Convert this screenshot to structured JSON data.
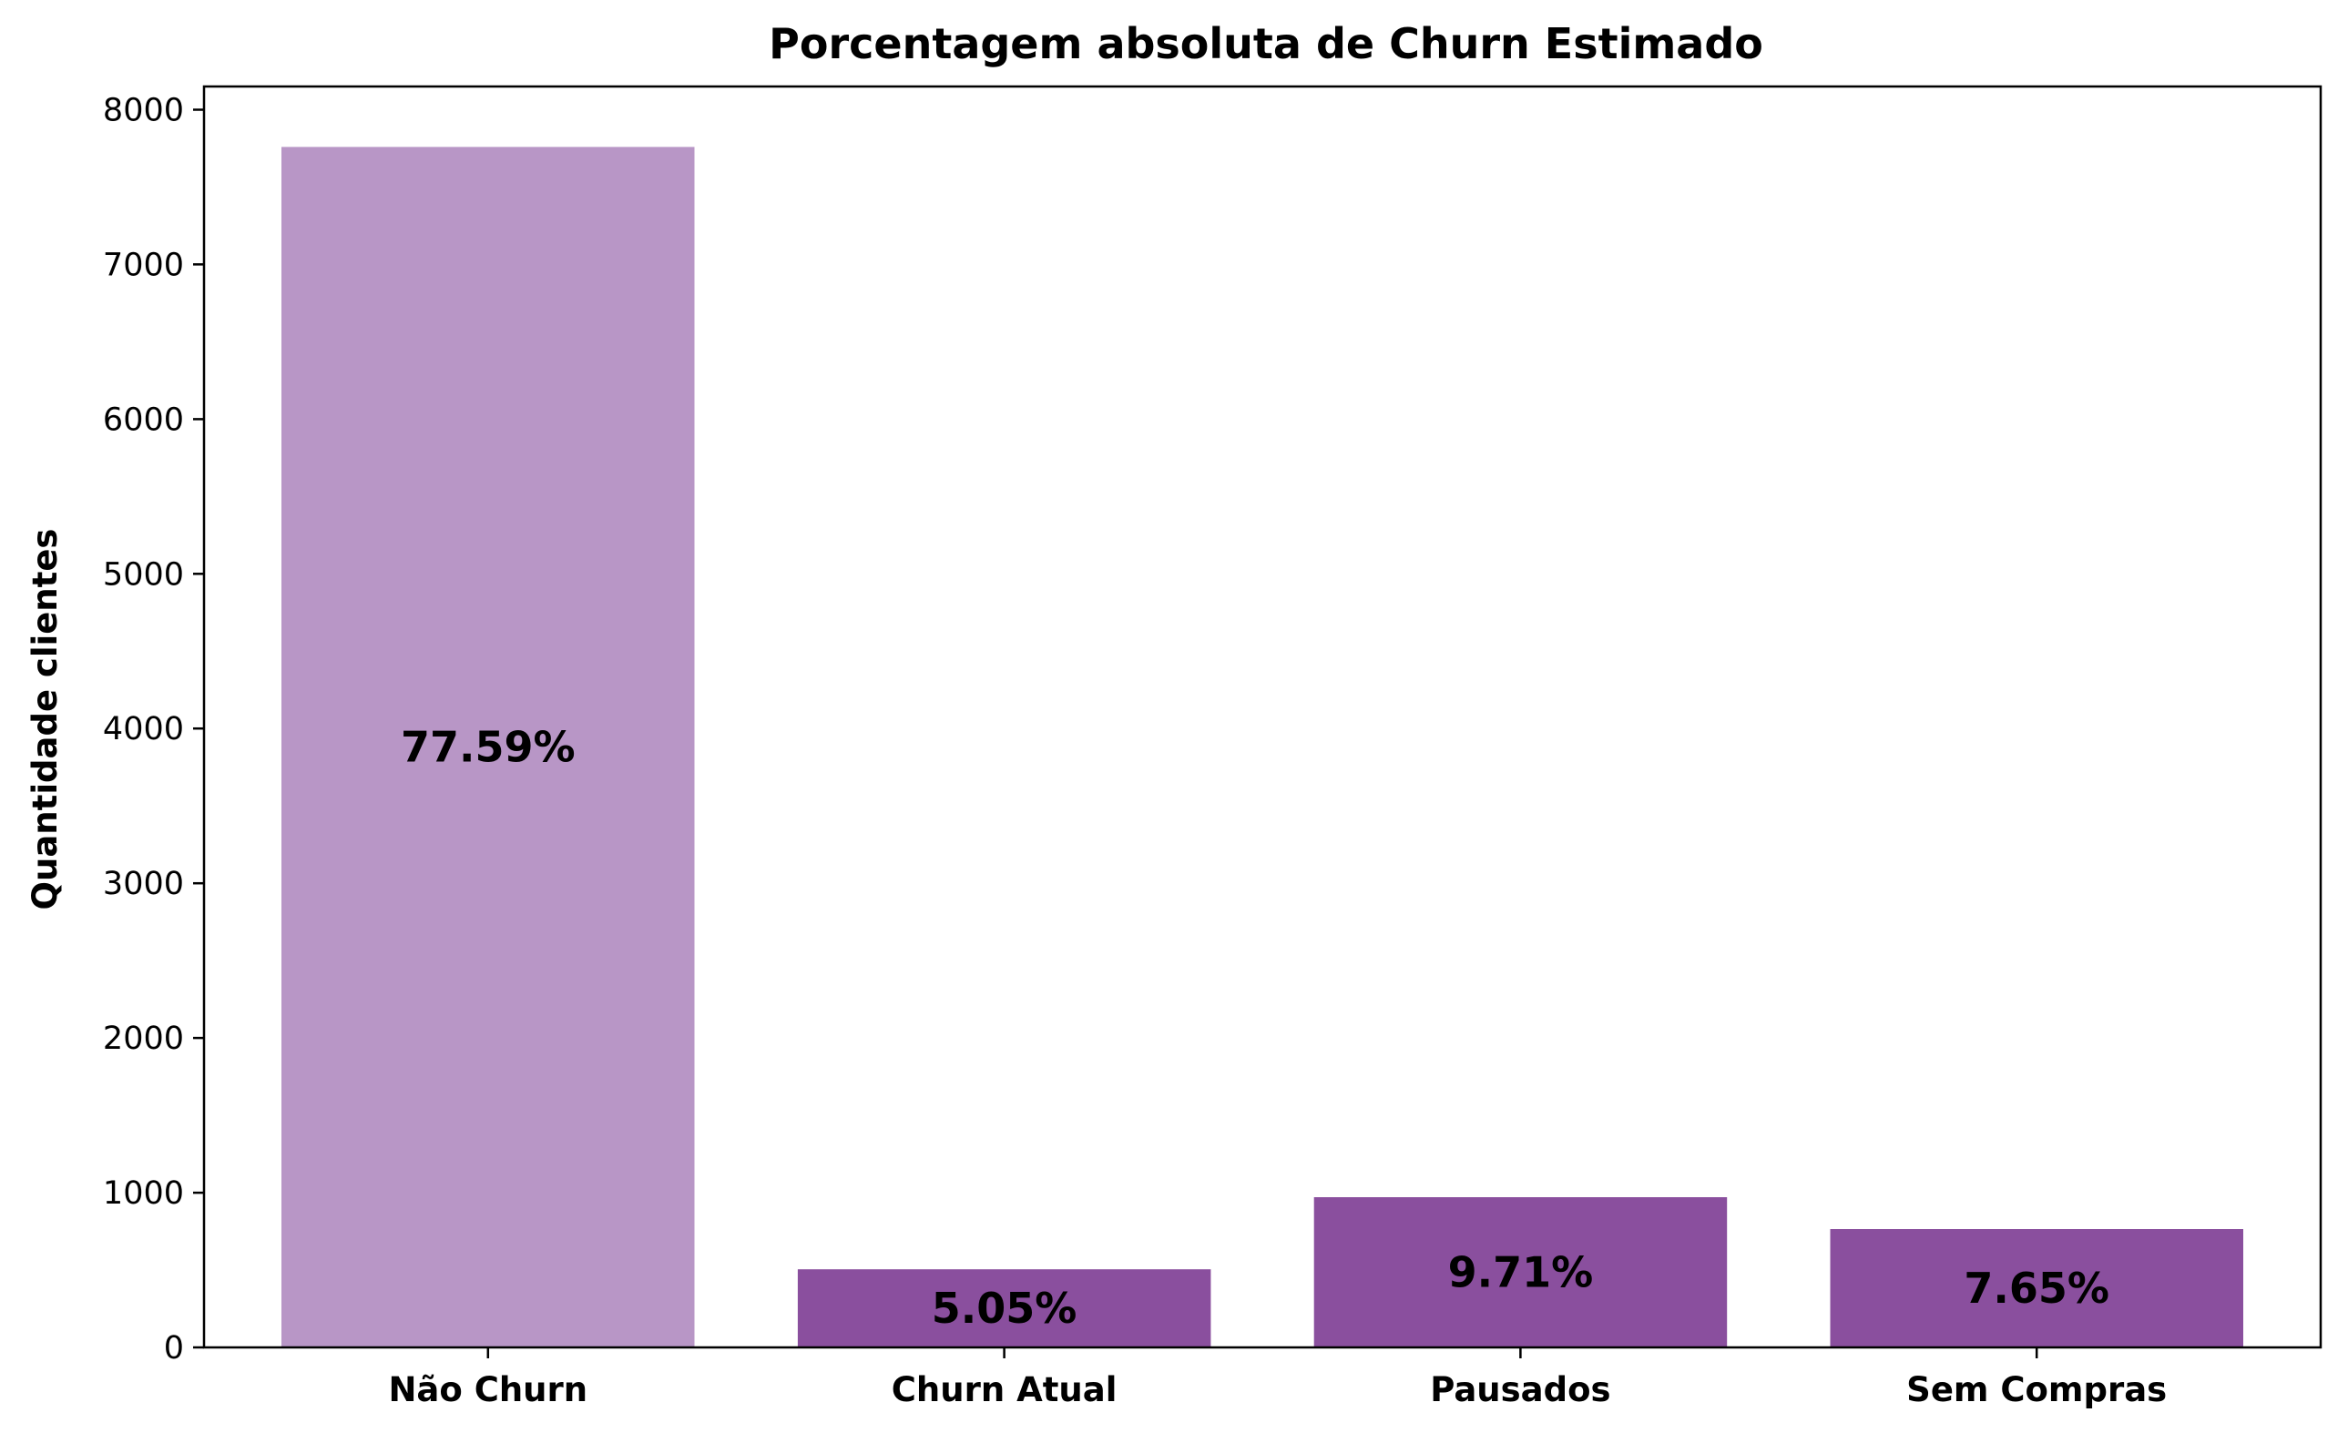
{
  "chart_data": {
    "type": "bar",
    "title": "Porcentagem absoluta de Churn Estimado",
    "xlabel": "",
    "ylabel": "Quantidade clientes",
    "categories": [
      "Não Churn",
      "Churn Atual",
      "Pausados",
      "Sem Compras"
    ],
    "values": [
      7759,
      505,
      971,
      765
    ],
    "bar_labels": [
      "77.59%",
      "5.05%",
      "9.71%",
      "7.65%"
    ],
    "bar_colors": [
      "#b896c6",
      "#8a4f9e",
      "#8a4f9e",
      "#8a4f9e"
    ],
    "yticks": [
      0,
      1000,
      2000,
      3000,
      4000,
      5000,
      6000,
      7000,
      8000
    ],
    "ylim": [
      0,
      8150
    ],
    "grid": false,
    "legend": false
  }
}
